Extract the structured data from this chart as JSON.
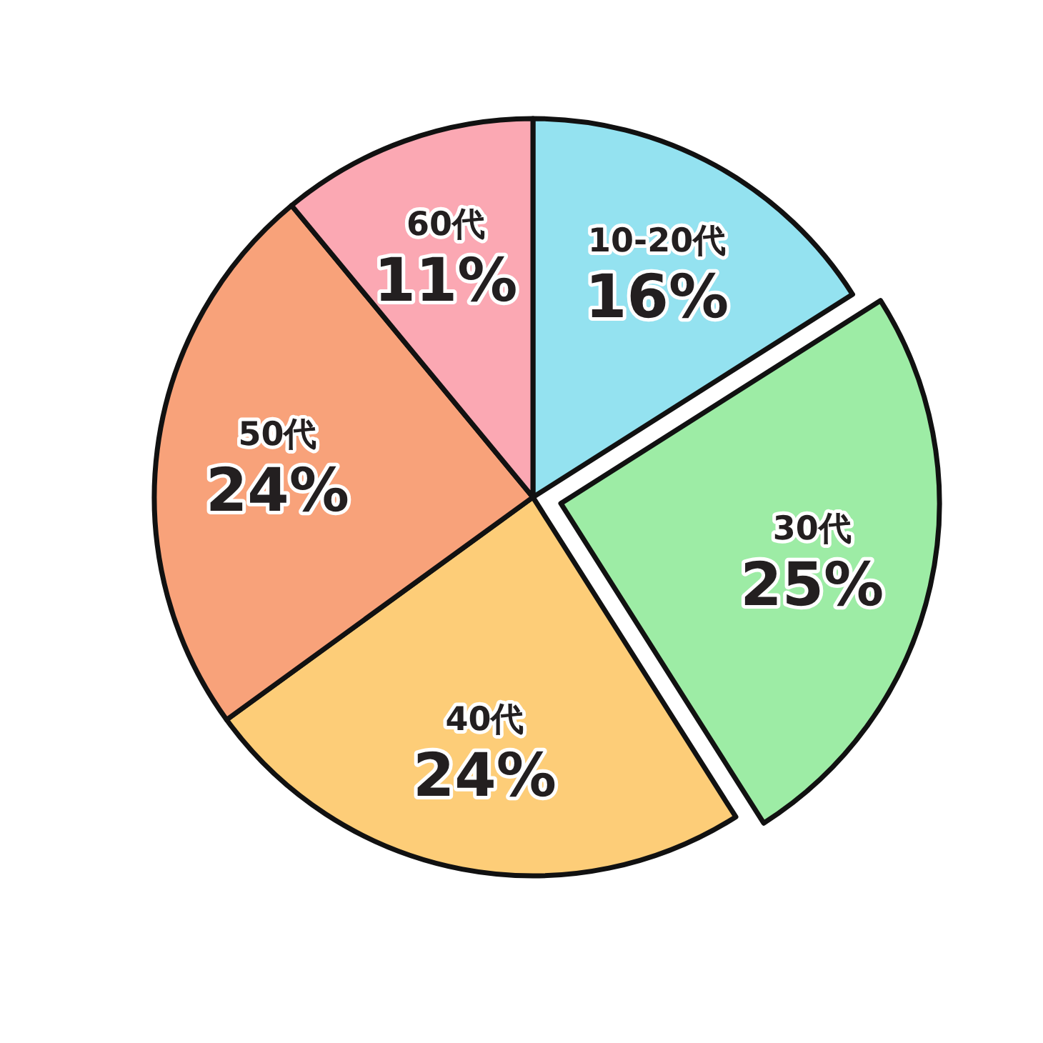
{
  "chart_data": {
    "type": "pie",
    "categories": [
      "10-20代",
      "30代",
      "40代",
      "50代",
      "60代"
    ],
    "values": [
      16,
      25,
      24,
      24,
      11
    ],
    "value_labels": [
      "16%",
      "25%",
      "24%",
      "24%",
      "11%"
    ],
    "colors": [
      "#94e2f0",
      "#9deca5",
      "#fdcd78",
      "#f8a27a",
      "#fba8b3"
    ]
  }
}
